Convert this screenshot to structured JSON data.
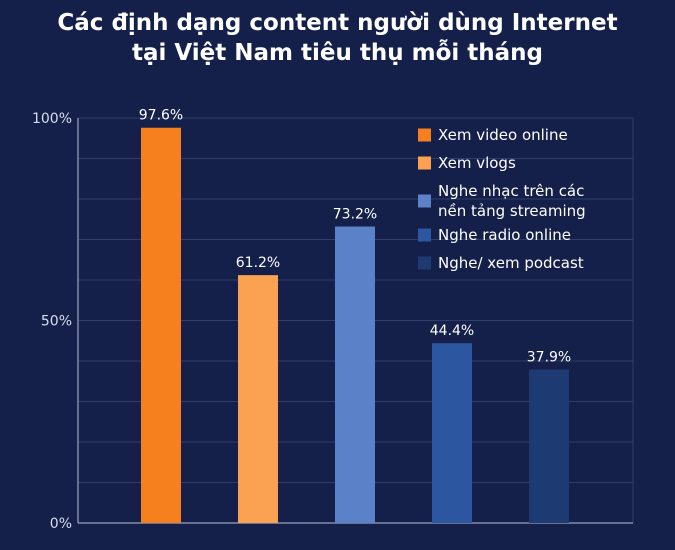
{
  "title_lines": [
    "Các định dạng content người dùng Internet",
    "tại Việt Nam tiêu thụ mỗi tháng"
  ],
  "chart_data": {
    "type": "bar",
    "title": "Các định dạng content người dùng Internet tại Việt Nam tiêu thụ mỗi tháng",
    "categories": [
      "Xem video online",
      "Xem vlogs",
      "Nghe nhạc trên các nền tảng streaming",
      "Nghe radio online",
      "Nghe/ xem podcast"
    ],
    "values": [
      97.6,
      61.2,
      73.2,
      44.4,
      37.9
    ],
    "value_labels": [
      "97.6%",
      "61.2%",
      "73.2%",
      "44.4%",
      "37.9%"
    ],
    "colors": [
      "#f7801e",
      "#fba152",
      "#5b82c8",
      "#2d56a0",
      "#1e3a72"
    ],
    "ylim": [
      0,
      100
    ],
    "y_ticks": [
      0,
      50,
      100
    ],
    "y_tick_labels": [
      "0%",
      "50%",
      "100%"
    ],
    "grid": true,
    "legend_position": "top-right",
    "legend": [
      {
        "lines": [
          "Xem video online"
        ],
        "color": "#f7801e"
      },
      {
        "lines": [
          "Xem vlogs"
        ],
        "color": "#fba152"
      },
      {
        "lines": [
          "Nghe nhạc trên các",
          "nền tảng streaming"
        ],
        "color": "#5b82c8"
      },
      {
        "lines": [
          "Nghe radio online"
        ],
        "color": "#2d56a0"
      },
      {
        "lines": [
          "Nghe/ xem podcast"
        ],
        "color": "#1e3a72"
      }
    ],
    "xlabel": "",
    "ylabel": ""
  }
}
